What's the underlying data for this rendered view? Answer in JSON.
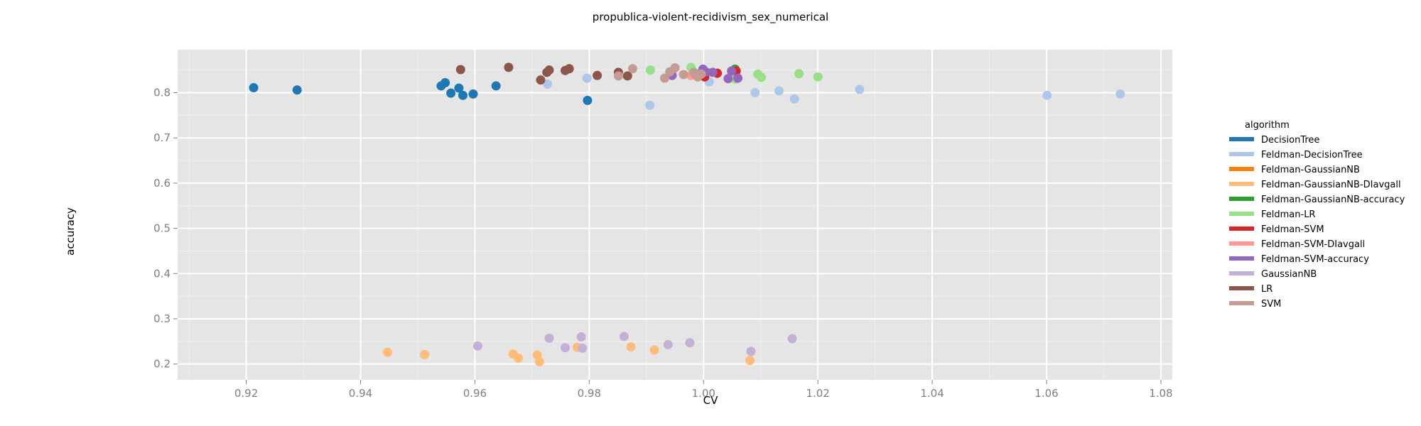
{
  "chart_data": {
    "type": "scatter",
    "title": "propublica-violent-recidivism_sex_numerical",
    "xlabel": "CV",
    "ylabel": "accuracy",
    "xlim": [
      0.908,
      1.082
    ],
    "ylim": [
      0.165,
      0.895
    ],
    "x_ticks": [
      "0.92",
      "0.94",
      "0.96",
      "0.98",
      "1.00",
      "1.02",
      "1.04",
      "1.06",
      "1.08"
    ],
    "y_ticks": [
      "0.2",
      "0.3",
      "0.4",
      "0.5",
      "0.6",
      "0.7",
      "0.8"
    ],
    "grid": true,
    "legend": {
      "title": "algorithm",
      "position": "right"
    },
    "series": [
      {
        "name": "DecisionTree",
        "color": "#1f77b4",
        "points": [
          [
            0.9213,
            0.811
          ],
          [
            0.9289,
            0.806
          ],
          [
            0.9541,
            0.815
          ],
          [
            0.9548,
            0.822
          ],
          [
            0.9558,
            0.799
          ],
          [
            0.9572,
            0.81
          ],
          [
            0.9579,
            0.794
          ],
          [
            0.9597,
            0.797
          ],
          [
            0.9637,
            0.815
          ],
          [
            0.9797,
            0.783
          ]
        ]
      },
      {
        "name": "Feldman-DecisionTree",
        "color": "#aec7e8",
        "points": [
          [
            0.9727,
            0.819
          ],
          [
            0.9796,
            0.832
          ],
          [
            0.9906,
            0.772
          ],
          [
            1.001,
            0.824
          ],
          [
            1.009,
            0.8
          ],
          [
            1.0132,
            0.804
          ],
          [
            1.0159,
            0.786
          ],
          [
            1.0273,
            0.807
          ],
          [
            1.0601,
            0.794
          ],
          [
            1.0729,
            0.797
          ]
        ]
      },
      {
        "name": "Feldman-GaussianNB",
        "color": "#ff7f0e",
        "points": []
      },
      {
        "name": "Feldman-GaussianNB-DIavgall",
        "color": "#ffbb78",
        "points": [
          [
            0.9447,
            0.226
          ],
          [
            0.9512,
            0.221
          ],
          [
            0.9667,
            0.222
          ],
          [
            0.9676,
            0.213
          ],
          [
            0.9709,
            0.22
          ],
          [
            0.9713,
            0.205
          ],
          [
            0.9779,
            0.237
          ],
          [
            0.9873,
            0.238
          ],
          [
            0.9914,
            0.231
          ],
          [
            1.0081,
            0.208
          ]
        ]
      },
      {
        "name": "Feldman-GaussianNB-accuracy",
        "color": "#2ca02c",
        "points": [
          [
            1.0055,
            0.852
          ]
        ]
      },
      {
        "name": "Feldman-LR",
        "color": "#98df8a",
        "points": [
          [
            0.9907,
            0.85
          ],
          [
            0.9978,
            0.856
          ],
          [
            1.0055,
            0.83
          ],
          [
            1.0095,
            0.841
          ],
          [
            1.0101,
            0.834
          ],
          [
            1.0167,
            0.842
          ],
          [
            1.02,
            0.835
          ]
        ]
      },
      {
        "name": "Feldman-SVM",
        "color": "#d62728",
        "points": [
          [
            1.0002,
            0.835
          ],
          [
            1.0024,
            0.843
          ],
          [
            1.0057,
            0.848
          ]
        ]
      },
      {
        "name": "Feldman-SVM-DIavgall",
        "color": "#ff9896",
        "points": [
          [
            0.9978,
            0.838
          ]
        ]
      },
      {
        "name": "Feldman-SVM-accuracy",
        "color": "#9467bd",
        "points": [
          [
            0.9945,
            0.838
          ],
          [
            0.9986,
            0.842
          ],
          [
            0.9999,
            0.852
          ],
          [
            1.0004,
            0.846
          ],
          [
            1.0016,
            0.845
          ],
          [
            1.0043,
            0.831
          ],
          [
            1.0049,
            0.848
          ],
          [
            1.006,
            0.832
          ]
        ]
      },
      {
        "name": "GaussianNB",
        "color": "#c5b0d5",
        "points": [
          [
            0.9605,
            0.24
          ],
          [
            0.973,
            0.257
          ],
          [
            0.9758,
            0.236
          ],
          [
            0.9786,
            0.26
          ],
          [
            0.9788,
            0.235
          ],
          [
            0.9861,
            0.261
          ],
          [
            0.9938,
            0.243
          ],
          [
            0.9976,
            0.247
          ],
          [
            1.0083,
            0.228
          ],
          [
            1.0155,
            0.256
          ]
        ]
      },
      {
        "name": "LR",
        "color": "#8c564b",
        "points": [
          [
            0.9575,
            0.851
          ],
          [
            0.9659,
            0.856
          ],
          [
            0.9715,
            0.828
          ],
          [
            0.9726,
            0.845
          ],
          [
            0.973,
            0.85
          ],
          [
            0.9758,
            0.849
          ],
          [
            0.9765,
            0.853
          ],
          [
            0.9814,
            0.838
          ],
          [
            0.9851,
            0.845
          ],
          [
            0.9867,
            0.837
          ]
        ]
      },
      {
        "name": "SVM",
        "color": "#c49c94",
        "points": [
          [
            0.9851,
            0.837
          ],
          [
            0.9876,
            0.853
          ],
          [
            0.9932,
            0.832
          ],
          [
            0.9941,
            0.846
          ],
          [
            0.995,
            0.855
          ],
          [
            0.9965,
            0.84
          ],
          [
            0.9983,
            0.845
          ],
          [
            0.999,
            0.835
          ],
          [
            0.9996,
            0.841
          ]
        ]
      }
    ]
  }
}
